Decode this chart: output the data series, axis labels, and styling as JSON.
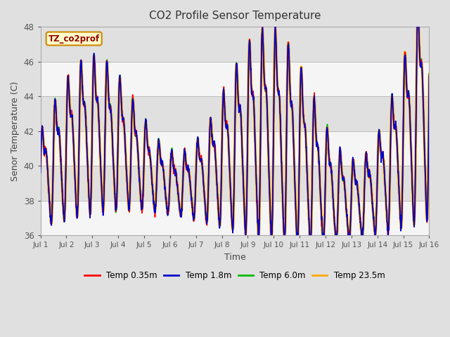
{
  "title": "CO2 Profile Sensor Temperature",
  "xlabel": "Time",
  "ylabel": "Senor Temperature (C)",
  "ylim": [
    36,
    48
  ],
  "xlim": [
    0,
    15
  ],
  "xtick_labels": [
    "Jul 1",
    "Jul 2",
    "Jul 3",
    "Jul 4",
    "Jul 5",
    "Jul 6",
    "Jul 7",
    "Jul 8",
    "Jul 9",
    "Jul 10",
    "Jul 11",
    "Jul 12",
    "Jul 13",
    "Jul 14",
    "Jul 15",
    "Jul 16"
  ],
  "ytick_values": [
    36,
    38,
    40,
    42,
    44,
    46,
    48
  ],
  "fig_bg": "#e0e0e0",
  "plot_bg_light": "#f5f5f5",
  "plot_bg_dark": "#e0e0e0",
  "label_box_text": "TZ_co2prof",
  "label_box_bg": "#ffffcc",
  "label_box_edge": "#cc8800",
  "label_box_text_color": "#990000",
  "series_colors": [
    "#ff0000",
    "#0000cc",
    "#00bb00",
    "#ffaa00"
  ],
  "series_labels": [
    "Temp 0.35m",
    "Temp 1.8m",
    "Temp 6.0m",
    "Temp 23.5m"
  ],
  "series_lw": [
    1.2,
    1.2,
    1.2,
    2.5
  ],
  "series_zorder": [
    3,
    4,
    2,
    1
  ]
}
